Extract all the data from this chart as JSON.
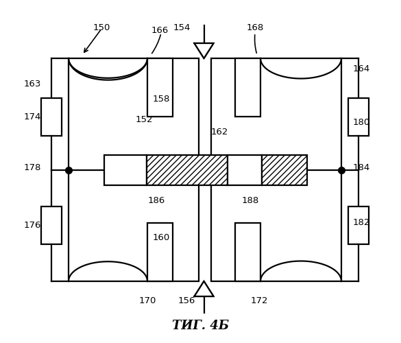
{
  "title": "ΤИГ. 4Б",
  "bg_color": "#ffffff",
  "line_color": "#000000",
  "lw": 1.6
}
